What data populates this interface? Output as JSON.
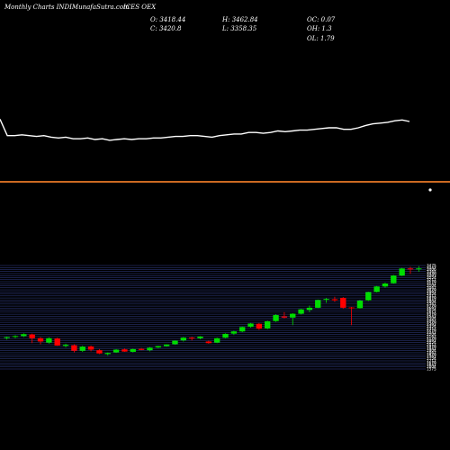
{
  "header": {
    "source": "Monthly Charts INDIMunafaSutra.com",
    "symbol": "ICES OEX",
    "open": "O: 3418.44",
    "close": "C: 3420.8",
    "high": "H: 3462.84",
    "low": "L: 3358.35",
    "oc": "OC: 0.07",
    "oh": "OH: 1.3",
    "ol": "OL: 1.79"
  },
  "colors": {
    "background": "#000000",
    "up": "#00dd00",
    "down": "#ff0000",
    "line": "#ffffff",
    "separator": "#cc6a22",
    "grid": "#3a4a9e"
  },
  "chart_data": [
    {
      "type": "line",
      "title": "",
      "xlabel": "",
      "ylabel": "",
      "ylim": [
        0,
        100
      ],
      "values": [
        57,
        36,
        36,
        37,
        36,
        35,
        36,
        34,
        33,
        34,
        32,
        32,
        33,
        31,
        32,
        30,
        31,
        32,
        31,
        32,
        32,
        33,
        33,
        34,
        35,
        35,
        36,
        36,
        35,
        34,
        36,
        37,
        38,
        38,
        40,
        40,
        39,
        40,
        42,
        41,
        42,
        43,
        43,
        44,
        45,
        46,
        46,
        44,
        44,
        46,
        49,
        51,
        52,
        53,
        55,
        56,
        54
      ]
    },
    {
      "type": "candlestick",
      "title": "",
      "xlabel": "",
      "ylabel": "",
      "ylim": [
        1575,
        3475
      ],
      "grid": true,
      "ticks": [
        "3475",
        "3442",
        "3406",
        "3365",
        "3330",
        "3293",
        "3254",
        "3217",
        "3179",
        "3142",
        "3104",
        "3067",
        "3029",
        "2992",
        "2954",
        "2917",
        "2879",
        "2842",
        "2804",
        "2767",
        "2729",
        "2692",
        "2654",
        "2617",
        "2579",
        "2542",
        "2504",
        "2467",
        "2429",
        "2392",
        "2354",
        "2317",
        "2279",
        "2242",
        "2204",
        "2167",
        "2129",
        "2092",
        "2054",
        "2017",
        "1979",
        "1942",
        "1904",
        "1867",
        "1829",
        "1792",
        "1754",
        "1717",
        "1679",
        "1642",
        "1604",
        "1575"
      ],
      "candles": [
        {
          "o": 2150,
          "h": 2170,
          "l": 2115,
          "c": 2160
        },
        {
          "o": 2165,
          "h": 2195,
          "l": 2140,
          "c": 2180
        },
        {
          "o": 2180,
          "h": 2230,
          "l": 2160,
          "c": 2215
        },
        {
          "o": 2210,
          "h": 2225,
          "l": 2050,
          "c": 2140
        },
        {
          "o": 2140,
          "h": 2160,
          "l": 2030,
          "c": 2080
        },
        {
          "o": 2060,
          "h": 2155,
          "l": 2040,
          "c": 2140
        },
        {
          "o": 2135,
          "h": 2150,
          "l": 2000,
          "c": 2005
        },
        {
          "o": 2000,
          "h": 2040,
          "l": 1970,
          "c": 2020
        },
        {
          "o": 2010,
          "h": 2030,
          "l": 1880,
          "c": 1910
        },
        {
          "o": 1910,
          "h": 2000,
          "l": 1890,
          "c": 1985
        },
        {
          "o": 1990,
          "h": 2005,
          "l": 1900,
          "c": 1930
        },
        {
          "o": 1920,
          "h": 1940,
          "l": 1850,
          "c": 1860
        },
        {
          "o": 1850,
          "h": 1880,
          "l": 1820,
          "c": 1870
        },
        {
          "o": 1880,
          "h": 1940,
          "l": 1870,
          "c": 1930
        },
        {
          "o": 1935,
          "h": 1955,
          "l": 1890,
          "c": 1895
        },
        {
          "o": 1890,
          "h": 1950,
          "l": 1880,
          "c": 1940
        },
        {
          "o": 1945,
          "h": 1960,
          "l": 1920,
          "c": 1925
        },
        {
          "o": 1920,
          "h": 1975,
          "l": 1900,
          "c": 1965
        },
        {
          "o": 1970,
          "h": 2000,
          "l": 1960,
          "c": 1995
        },
        {
          "o": 1995,
          "h": 2030,
          "l": 1985,
          "c": 2025
        },
        {
          "o": 2030,
          "h": 2100,
          "l": 2020,
          "c": 2095
        },
        {
          "o": 2100,
          "h": 2160,
          "l": 2080,
          "c": 2150
        },
        {
          "o": 2150,
          "h": 2165,
          "l": 2100,
          "c": 2135
        },
        {
          "o": 2140,
          "h": 2180,
          "l": 2120,
          "c": 2170
        },
        {
          "o": 2080,
          "h": 2095,
          "l": 2040,
          "c": 2050
        },
        {
          "o": 2060,
          "h": 2150,
          "l": 2050,
          "c": 2140
        },
        {
          "o": 2150,
          "h": 2230,
          "l": 2140,
          "c": 2220
        },
        {
          "o": 2225,
          "h": 2275,
          "l": 2200,
          "c": 2265
        },
        {
          "o": 2265,
          "h": 2355,
          "l": 2250,
          "c": 2345
        },
        {
          "o": 2350,
          "h": 2420,
          "l": 2335,
          "c": 2410
        },
        {
          "o": 2405,
          "h": 2420,
          "l": 2295,
          "c": 2315
        },
        {
          "o": 2320,
          "h": 2460,
          "l": 2305,
          "c": 2450
        },
        {
          "o": 2455,
          "h": 2580,
          "l": 2440,
          "c": 2565
        },
        {
          "o": 2540,
          "h": 2620,
          "l": 2500,
          "c": 2520
        },
        {
          "o": 2520,
          "h": 2600,
          "l": 2380,
          "c": 2590
        },
        {
          "o": 2590,
          "h": 2680,
          "l": 2575,
          "c": 2670
        },
        {
          "o": 2660,
          "h": 2740,
          "l": 2620,
          "c": 2700
        },
        {
          "o": 2700,
          "h": 2850,
          "l": 2690,
          "c": 2840
        },
        {
          "o": 2845,
          "h": 2880,
          "l": 2790,
          "c": 2860
        },
        {
          "o": 2855,
          "h": 2900,
          "l": 2810,
          "c": 2835
        },
        {
          "o": 2880,
          "h": 2895,
          "l": 2680,
          "c": 2700
        },
        {
          "o": 2705,
          "h": 2715,
          "l": 2380,
          "c": 2690
        },
        {
          "o": 2690,
          "h": 2840,
          "l": 2685,
          "c": 2830
        },
        {
          "o": 2835,
          "h": 2995,
          "l": 2825,
          "c": 2985
        },
        {
          "o": 2990,
          "h": 3100,
          "l": 2980,
          "c": 3090
        },
        {
          "o": 3090,
          "h": 3160,
          "l": 3070,
          "c": 3145
        },
        {
          "o": 3150,
          "h": 3300,
          "l": 3140,
          "c": 3290
        },
        {
          "o": 3290,
          "h": 3430,
          "l": 3280,
          "c": 3420
        },
        {
          "o": 3420,
          "h": 3450,
          "l": 3320,
          "c": 3405
        },
        {
          "o": 3418.44,
          "h": 3462.84,
          "l": 3358.35,
          "c": 3420.8
        }
      ]
    }
  ]
}
